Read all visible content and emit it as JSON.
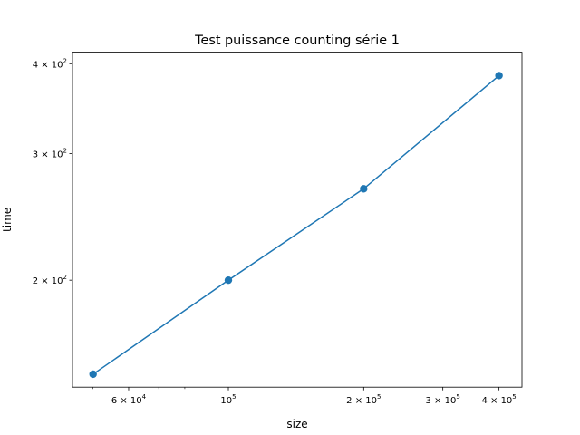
{
  "chart_data": {
    "type": "line",
    "title": "Test puissance counting série 1",
    "xlabel": "size",
    "ylabel": "time",
    "xscale": "log",
    "yscale": "log",
    "xlim": [
      45000,
      450000
    ],
    "ylim": [
      142,
      415
    ],
    "grid": false,
    "series": [
      {
        "x": [
          50000,
          100000,
          200000,
          400000
        ],
        "y": [
          148,
          200,
          268,
          385
        ],
        "color": "#1f77b4",
        "marker": "circle"
      }
    ],
    "x_major_ticks": [
      {
        "value": 60000,
        "mantissa": "6",
        "base": "10",
        "exp": "4"
      },
      {
        "value": 100000,
        "mantissa": "",
        "base": "10",
        "exp": "5"
      },
      {
        "value": 200000,
        "mantissa": "2",
        "base": "10",
        "exp": "5"
      },
      {
        "value": 300000,
        "mantissa": "3",
        "base": "10",
        "exp": "5"
      },
      {
        "value": 400000,
        "mantissa": "4",
        "base": "10",
        "exp": "5"
      }
    ],
    "x_minor_ticks": [
      50000,
      70000,
      80000,
      90000
    ],
    "y_major_ticks": [
      {
        "value": 200,
        "mantissa": "2",
        "base": "10",
        "exp": "2"
      },
      {
        "value": 300,
        "mantissa": "3",
        "base": "10",
        "exp": "2"
      },
      {
        "value": 400,
        "mantissa": "4",
        "base": "10",
        "exp": "2"
      }
    ]
  }
}
